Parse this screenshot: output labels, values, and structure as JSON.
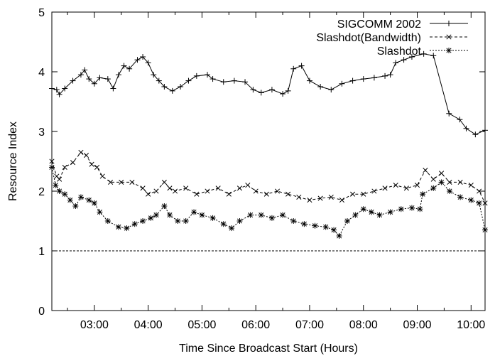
{
  "chart_data": {
    "type": "line",
    "title": "",
    "xlabel": "Time Since Broadcast Start (Hours)",
    "ylabel": "Resource Index",
    "xlim": [
      2.21,
      10.26
    ],
    "ylim": [
      0,
      5
    ],
    "grid": false,
    "legend_position": "top-right",
    "x_ticks": [
      {
        "value": 3,
        "label": "03:00"
      },
      {
        "value": 4,
        "label": "04:00"
      },
      {
        "value": 5,
        "label": "05:00"
      },
      {
        "value": 6,
        "label": "06:00"
      },
      {
        "value": 7,
        "label": "07:00"
      },
      {
        "value": 8,
        "label": "08:00"
      },
      {
        "value": 9,
        "label": "09:00"
      },
      {
        "value": 10,
        "label": "10:00"
      }
    ],
    "x_minor_ticks": [
      2.5,
      3.5,
      4.5,
      5.5,
      6.5,
      7.5,
      8.5,
      9.5
    ],
    "y_ticks": [
      {
        "value": 0,
        "label": "0"
      },
      {
        "value": 1,
        "label": "1"
      },
      {
        "value": 2,
        "label": "2"
      },
      {
        "value": 3,
        "label": "3"
      },
      {
        "value": 4,
        "label": "4"
      },
      {
        "value": 5,
        "label": "5"
      }
    ],
    "reference_line": {
      "y": 1,
      "style": "dashed"
    },
    "series": [
      {
        "name": "SIGCOMM 2002",
        "marker": "plus",
        "line": "solid",
        "x": [
          2.21,
          2.3,
          2.35,
          2.45,
          2.6,
          2.75,
          2.82,
          2.9,
          3.0,
          3.1,
          3.25,
          3.35,
          3.45,
          3.55,
          3.65,
          3.8,
          3.9,
          4.0,
          4.1,
          4.2,
          4.3,
          4.45,
          4.6,
          4.75,
          4.9,
          5.1,
          5.2,
          5.4,
          5.6,
          5.8,
          5.95,
          6.1,
          6.3,
          6.5,
          6.6,
          6.7,
          6.85,
          7.0,
          7.2,
          7.4,
          7.6,
          7.8,
          8.0,
          8.2,
          8.4,
          8.5,
          8.6,
          8.75,
          8.9,
          9.12,
          9.3,
          9.59,
          9.79,
          9.91,
          10.08,
          10.26
        ],
        "y": [
          3.72,
          3.7,
          3.62,
          3.72,
          3.85,
          3.95,
          4.03,
          3.88,
          3.8,
          3.9,
          3.88,
          3.72,
          3.95,
          4.1,
          4.05,
          4.2,
          4.25,
          4.15,
          3.95,
          3.85,
          3.75,
          3.68,
          3.75,
          3.85,
          3.93,
          3.95,
          3.88,
          3.83,
          3.85,
          3.83,
          3.7,
          3.65,
          3.7,
          3.63,
          3.68,
          4.05,
          4.1,
          3.85,
          3.75,
          3.7,
          3.8,
          3.85,
          3.88,
          3.9,
          3.93,
          3.95,
          4.15,
          4.2,
          4.25,
          4.3,
          4.27,
          3.3,
          3.2,
          3.05,
          2.95,
          3.02
        ]
      },
      {
        "name": "Slashdot(Bandwidth)",
        "marker": "cross",
        "line": "dashed",
        "x": [
          2.21,
          2.3,
          2.35,
          2.45,
          2.6,
          2.75,
          2.85,
          2.95,
          3.05,
          3.15,
          3.3,
          3.5,
          3.7,
          3.9,
          4.0,
          4.15,
          4.3,
          4.4,
          4.5,
          4.7,
          4.9,
          5.1,
          5.3,
          5.5,
          5.7,
          5.85,
          6.0,
          6.2,
          6.4,
          6.6,
          6.8,
          7.0,
          7.2,
          7.4,
          7.6,
          7.8,
          8.0,
          8.2,
          8.4,
          8.6,
          8.8,
          9.0,
          9.15,
          9.3,
          9.45,
          9.6,
          9.8,
          10.0,
          10.15,
          10.26
        ],
        "y": [
          2.5,
          2.25,
          2.2,
          2.4,
          2.48,
          2.65,
          2.6,
          2.45,
          2.4,
          2.25,
          2.15,
          2.15,
          2.15,
          2.05,
          1.95,
          2.0,
          2.15,
          2.05,
          2.0,
          2.05,
          1.95,
          2.0,
          2.05,
          1.95,
          2.05,
          2.1,
          2.0,
          1.95,
          2.0,
          1.95,
          1.9,
          1.85,
          1.88,
          1.9,
          1.85,
          1.95,
          1.95,
          2.0,
          2.05,
          2.1,
          2.05,
          2.1,
          2.35,
          2.2,
          2.3,
          2.15,
          2.15,
          2.1,
          2.0,
          1.8
        ]
      },
      {
        "name": "Slashdot",
        "marker": "star",
        "line": "dotted",
        "x": [
          2.21,
          2.28,
          2.35,
          2.45,
          2.55,
          2.65,
          2.75,
          2.9,
          3.0,
          3.1,
          3.25,
          3.45,
          3.6,
          3.75,
          3.9,
          4.05,
          4.15,
          4.3,
          4.4,
          4.55,
          4.7,
          4.85,
          5.0,
          5.2,
          5.4,
          5.55,
          5.7,
          5.9,
          6.1,
          6.3,
          6.5,
          6.7,
          6.9,
          7.1,
          7.3,
          7.45,
          7.55,
          7.7,
          7.85,
          8.0,
          8.15,
          8.3,
          8.5,
          8.7,
          8.9,
          9.05,
          9.1,
          9.3,
          9.45,
          9.6,
          9.8,
          10.0,
          10.15,
          10.26
        ],
        "y": [
          2.4,
          2.1,
          2.0,
          1.95,
          1.85,
          1.75,
          1.9,
          1.85,
          1.8,
          1.65,
          1.5,
          1.4,
          1.38,
          1.45,
          1.5,
          1.55,
          1.6,
          1.75,
          1.6,
          1.5,
          1.5,
          1.65,
          1.6,
          1.55,
          1.45,
          1.38,
          1.5,
          1.6,
          1.6,
          1.55,
          1.6,
          1.5,
          1.45,
          1.42,
          1.4,
          1.35,
          1.25,
          1.5,
          1.6,
          1.7,
          1.65,
          1.6,
          1.65,
          1.7,
          1.72,
          1.7,
          1.95,
          2.05,
          2.15,
          2.0,
          1.9,
          1.85,
          1.8,
          1.35
        ]
      }
    ]
  }
}
